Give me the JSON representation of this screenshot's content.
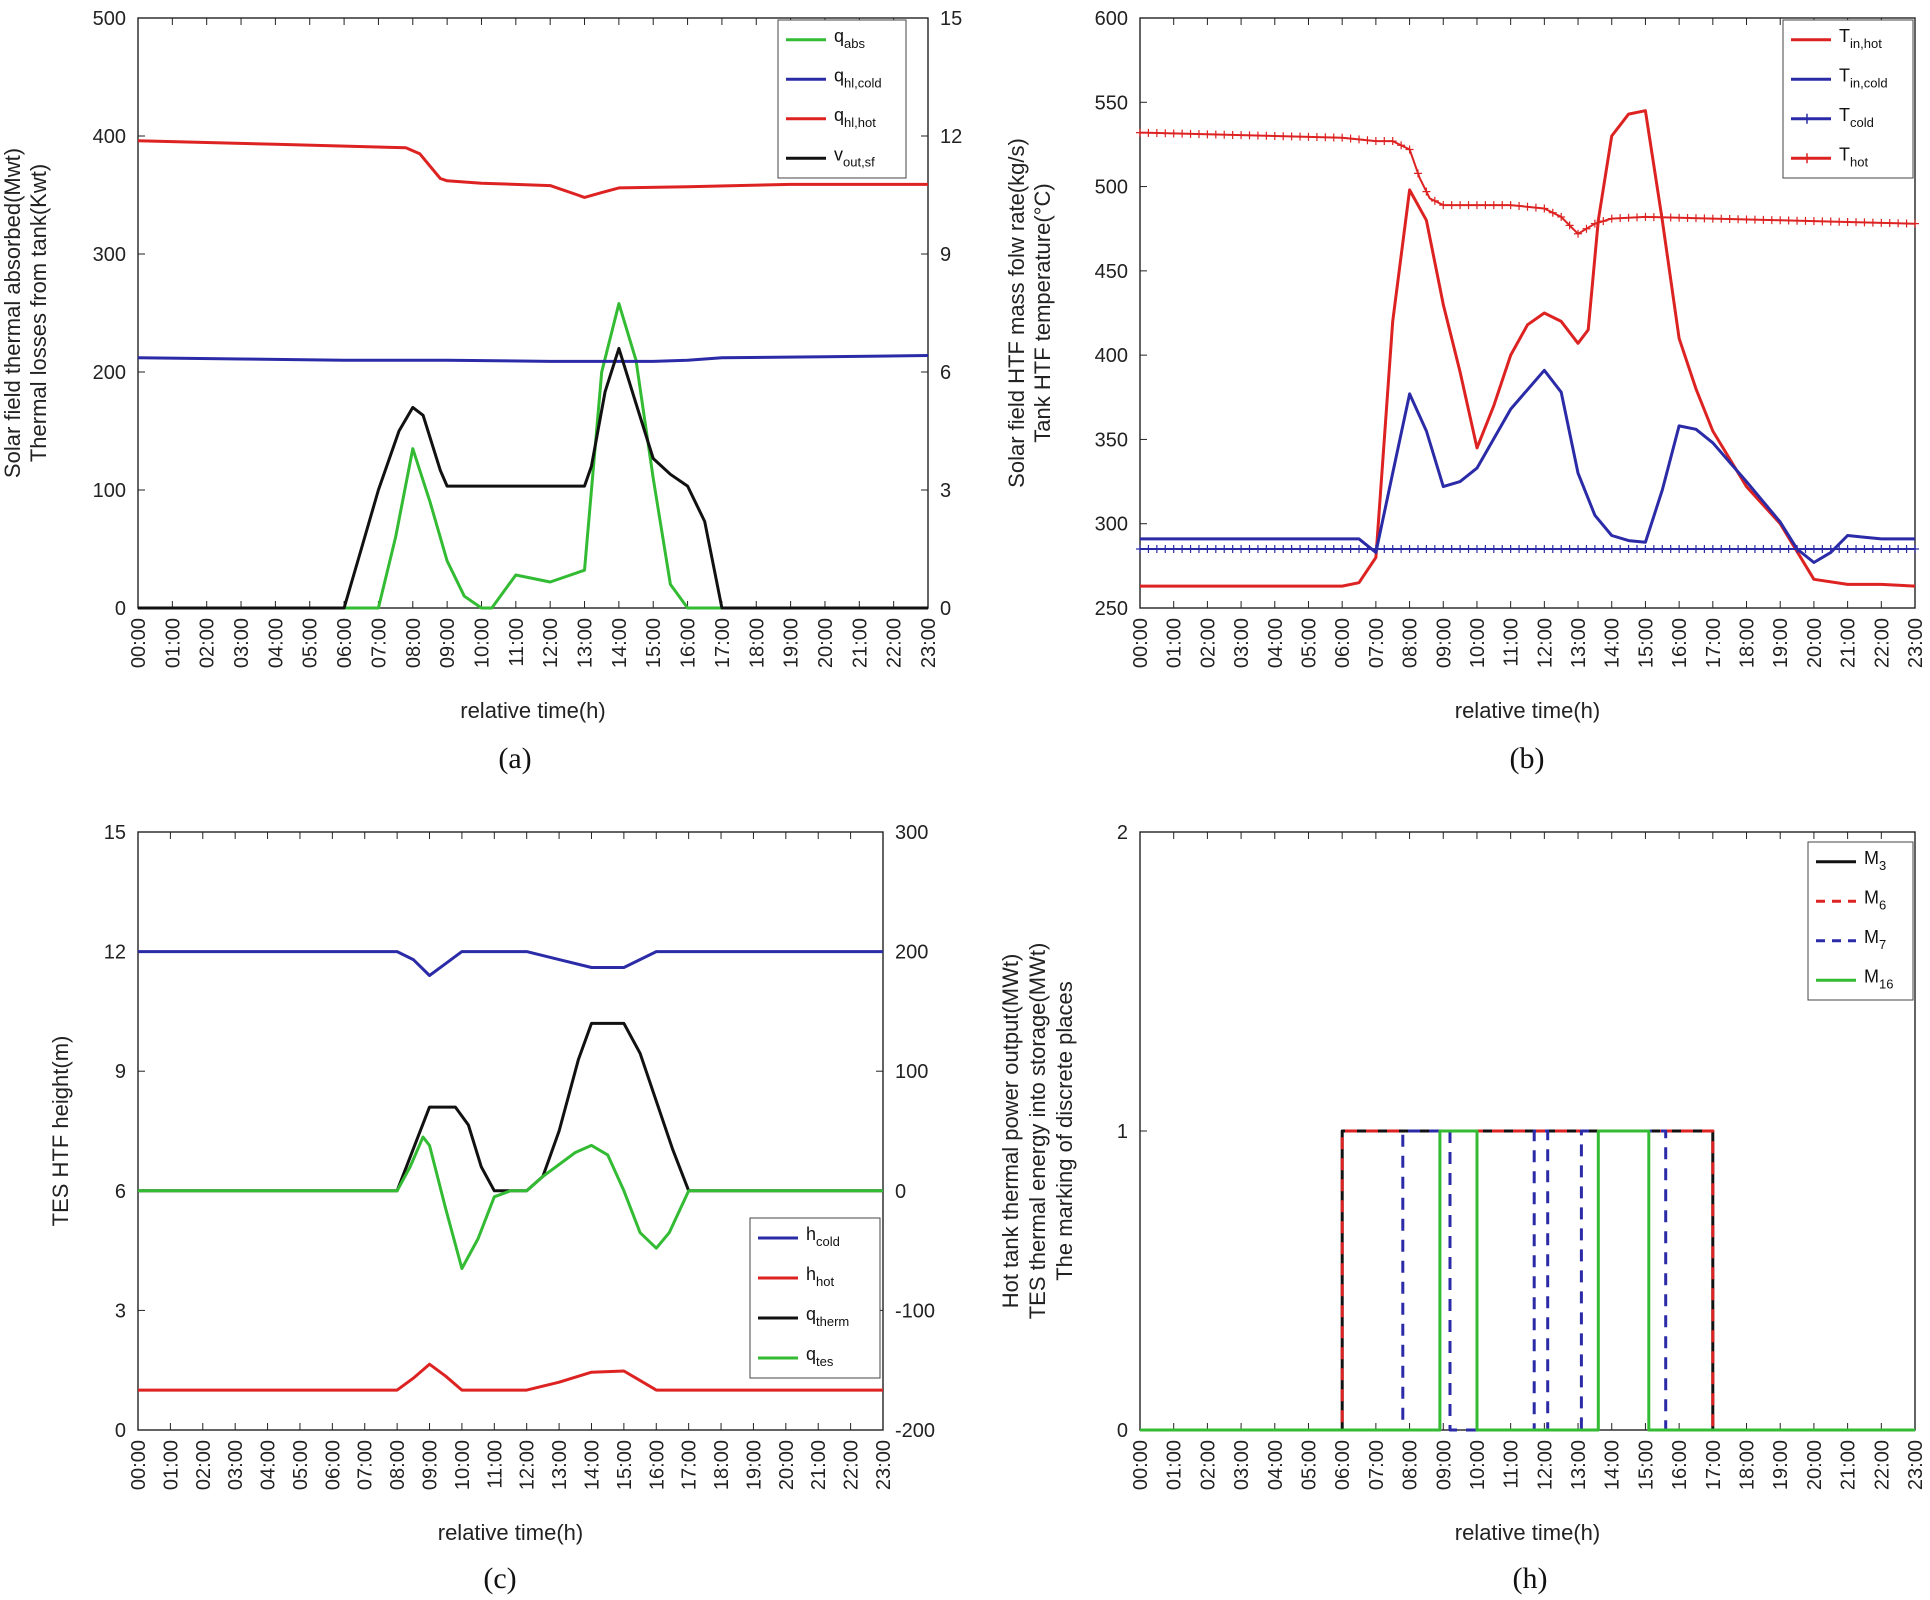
{
  "chart_data": [
    {
      "id": "a",
      "type": "line",
      "caption": "(a)",
      "xlabel": "relative time(h)",
      "ylabel_left": [
        "Solar field thermal absorbed(Mwt)",
        "Thermal losses from tank(Kwt)"
      ],
      "ylim_left": [
        0,
        500
      ],
      "yticks_left": [
        "0",
        "100",
        "200",
        "300",
        "400",
        "500"
      ],
      "ylim_right": [
        0,
        15
      ],
      "yticks_right": [
        "0",
        "3",
        "6",
        "9",
        "12",
        "15"
      ],
      "legend_position": "top-right",
      "series": [
        {
          "name": "q",
          "sub": "abs",
          "color": "#33bb33",
          "axis": "left",
          "style": "solid",
          "x": [
            0,
            6,
            6.2,
            7,
            7.5,
            8,
            8.5,
            9,
            9.5,
            10,
            10.3,
            11,
            12,
            13,
            13.5,
            14,
            14.5,
            15,
            15.5,
            16,
            23
          ],
          "y": [
            0,
            0,
            0,
            0,
            60,
            135,
            90,
            40,
            10,
            0,
            0,
            28,
            22,
            32,
            200,
            258,
            210,
            110,
            20,
            0,
            0
          ]
        },
        {
          "name": "q",
          "sub": "hl,cold",
          "color": "#2b2ba8",
          "axis": "left",
          "style": "solid",
          "x": [
            0,
            3,
            6,
            9,
            12,
            13,
            15,
            16,
            17,
            20,
            23
          ],
          "y": [
            212,
            211,
            210,
            210,
            209,
            209,
            209,
            210,
            212,
            213,
            214
          ]
        },
        {
          "name": "q",
          "sub": "hl,hot",
          "color": "#dd2222",
          "axis": "left",
          "style": "solid",
          "x": [
            0,
            4,
            7.8,
            8.2,
            8.8,
            9,
            10,
            12,
            12.8,
            13,
            13.5,
            14,
            16,
            19,
            23
          ],
          "y": [
            396,
            393,
            390,
            385,
            364,
            362,
            360,
            358,
            350,
            348,
            352,
            356,
            357,
            359,
            359
          ]
        },
        {
          "name": "v",
          "sub": "out,sf",
          "color": "#111111",
          "axis": "right",
          "style": "solid",
          "x": [
            0,
            6,
            6.5,
            7,
            7.6,
            8,
            8.3,
            8.8,
            9,
            10,
            11,
            12,
            13,
            13.2,
            13.6,
            14,
            14.5,
            15,
            15.5,
            16,
            16.5,
            17,
            23
          ],
          "y": [
            0,
            0,
            1.5,
            3,
            4.5,
            5.1,
            4.9,
            3.5,
            3.1,
            3.1,
            3.1,
            3.1,
            3.1,
            3.6,
            5.5,
            6.6,
            5.2,
            3.8,
            3.4,
            3.1,
            2.2,
            0,
            0
          ]
        }
      ]
    },
    {
      "id": "b",
      "type": "line",
      "caption": "(b)",
      "xlabel": "relative time(h)",
      "ylabel_left": [
        "Solar field HTF mass folw rate(kg/s)",
        "Tank HTF temperature(°C)"
      ],
      "ylim_left": [
        250,
        600
      ],
      "yticks_left": [
        "250",
        "300",
        "350",
        "400",
        "450",
        "500",
        "550",
        "600"
      ],
      "legend_position": "top-right",
      "series": [
        {
          "name": "T",
          "sub": "in,hot",
          "color": "#dd2222",
          "axis": "left",
          "style": "solid",
          "x": [
            0,
            6,
            6.5,
            7,
            7.5,
            8,
            8.5,
            9,
            9.5,
            10,
            10.5,
            11,
            11.5,
            12,
            12.5,
            13,
            13.3,
            13.6,
            14,
            14.5,
            15,
            15.5,
            16,
            16.5,
            17,
            18,
            19,
            20,
            21,
            22,
            23
          ],
          "y": [
            263,
            263,
            265,
            280,
            420,
            498,
            480,
            430,
            390,
            345,
            370,
            400,
            418,
            425,
            420,
            407,
            415,
            480,
            530,
            543,
            545,
            480,
            410,
            380,
            355,
            322,
            300,
            267,
            264,
            264,
            263
          ]
        },
        {
          "name": "T",
          "sub": "in,cold",
          "color": "#2b2ba8",
          "axis": "left",
          "style": "solid",
          "x": [
            0,
            6,
            6.5,
            7,
            7.5,
            8,
            8.5,
            9,
            9.5,
            10,
            11,
            12,
            12.5,
            13,
            13.5,
            14,
            14.5,
            15,
            15.5,
            16,
            16.5,
            17,
            18,
            19,
            19.5,
            20,
            20.5,
            21,
            21.5,
            22,
            23
          ],
          "y": [
            291,
            291,
            291,
            283,
            330,
            377,
            355,
            322,
            325,
            333,
            368,
            391,
            378,
            330,
            305,
            293,
            290,
            289,
            320,
            358,
            356,
            348,
            325,
            301,
            285,
            277,
            283,
            293,
            292,
            291,
            291
          ]
        },
        {
          "name": "T",
          "sub": "cold",
          "color": "#2b2ba8",
          "axis": "left",
          "style": "marker",
          "x": [
            0,
            5,
            10,
            15,
            20,
            23
          ],
          "y": [
            285,
            285,
            285,
            285,
            285,
            285
          ]
        },
        {
          "name": "T",
          "sub": "hot",
          "color": "#dd2222",
          "axis": "left",
          "style": "marker",
          "x": [
            0,
            2,
            4,
            6,
            7,
            7.5,
            8,
            8.3,
            8.6,
            9,
            10,
            11,
            12,
            12.5,
            13,
            13.5,
            14,
            15,
            17,
            19,
            21,
            23
          ],
          "y": [
            532,
            531,
            530,
            529,
            527,
            527,
            522,
            505,
            493,
            489,
            489,
            489,
            487,
            482,
            472,
            478,
            481,
            482,
            481,
            480,
            479,
            478
          ]
        }
      ]
    },
    {
      "id": "c",
      "type": "line",
      "caption": "(c)",
      "xlabel": "relative time(h)",
      "ylabel_left": [
        "TES HTF height(m)"
      ],
      "ylim_left": [
        0,
        15
      ],
      "yticks_left": [
        "0",
        "3",
        "6",
        "9",
        "12",
        "15"
      ],
      "ylim_right": [
        -200,
        300
      ],
      "yticks_right": [
        "-200",
        "-100",
        "0",
        "100",
        "200",
        "300"
      ],
      "legend_position": "bottom-right",
      "series": [
        {
          "name": "h",
          "sub": "cold",
          "color": "#2b2ba8",
          "axis": "left",
          "style": "solid",
          "x": [
            0,
            7,
            8,
            8.5,
            9,
            9.5,
            10,
            12,
            13,
            14,
            15,
            16,
            23
          ],
          "y": [
            12,
            12,
            12,
            11.8,
            11.4,
            11.7,
            12,
            12,
            11.8,
            11.6,
            11.6,
            12,
            12
          ]
        },
        {
          "name": "h",
          "sub": "hot",
          "color": "#dd2222",
          "axis": "left",
          "style": "solid",
          "x": [
            0,
            7,
            8,
            8.5,
            9,
            9.5,
            10,
            12,
            13,
            14,
            15,
            16,
            23
          ],
          "y": [
            1,
            1,
            1,
            1.3,
            1.65,
            1.35,
            1,
            1,
            1.2,
            1.45,
            1.48,
            1,
            1
          ]
        },
        {
          "name": "q",
          "sub": "therm",
          "color": "#111111",
          "axis": "right",
          "style": "solid",
          "x": [
            0,
            8,
            8.5,
            9,
            9.8,
            10.2,
            10.6,
            11,
            12,
            12.5,
            13,
            13.6,
            14,
            14.5,
            15,
            15.5,
            16,
            16.5,
            17,
            23
          ],
          "y": [
            0,
            0,
            35,
            70,
            70,
            55,
            20,
            0,
            0,
            12,
            50,
            110,
            140,
            140,
            140,
            115,
            75,
            35,
            0,
            0
          ]
        },
        {
          "name": "q",
          "sub": "tes",
          "color": "#33bb33",
          "axis": "right",
          "style": "solid",
          "x": [
            0,
            7,
            8,
            8.4,
            8.8,
            9,
            9.5,
            10,
            10.5,
            11,
            11.5,
            12,
            12.5,
            13,
            13.5,
            14,
            14.5,
            15,
            15.5,
            16,
            16.4,
            17,
            23
          ],
          "y": [
            0,
            0,
            0,
            20,
            45,
            38,
            -15,
            -65,
            -40,
            -5,
            0,
            0,
            12,
            22,
            32,
            38,
            30,
            0,
            -35,
            -48,
            -35,
            0,
            0
          ]
        }
      ]
    },
    {
      "id": "h",
      "type": "line",
      "caption": "(h)",
      "xlabel": "relative time(h)",
      "ylabel_left": [
        "Hot tank thermal power output(MWt)",
        "TES thermal energy into storage(MWt)",
        "The marking of discrete places"
      ],
      "ylim_left": [
        0,
        2
      ],
      "yticks_left": [
        "0",
        "1",
        "2"
      ],
      "legend_position": "top-right",
      "series": [
        {
          "name": "M",
          "sub": "3",
          "color": "#111111",
          "axis": "left",
          "style": "solid",
          "x": [
            0,
            6,
            6,
            17,
            17,
            23
          ],
          "y": [
            0,
            0,
            1,
            1,
            0,
            0
          ]
        },
        {
          "name": "M",
          "sub": "6",
          "color": "#dd2222",
          "axis": "left",
          "style": "dashed",
          "x": [
            0,
            6,
            6,
            17,
            17,
            23
          ],
          "y": [
            0,
            0,
            1,
            1,
            0,
            0
          ]
        },
        {
          "name": "M",
          "sub": "7",
          "color": "#2b2ba8",
          "axis": "left",
          "style": "dashed",
          "x": [
            0,
            7.8,
            7.8,
            9.2,
            9.2,
            11.7,
            11.7,
            12.1,
            12.1,
            13.1,
            13.1,
            15.6,
            15.6,
            23
          ],
          "y": [
            0,
            0,
            1,
            1,
            0,
            0,
            1,
            1,
            0,
            0,
            1,
            1,
            0,
            0
          ]
        },
        {
          "name": "M",
          "sub": "16",
          "color": "#33bb33",
          "axis": "left",
          "style": "solid",
          "x": [
            0,
            8.9,
            8.9,
            10,
            10,
            13.6,
            13.6,
            15.1,
            15.1,
            23
          ],
          "y": [
            0,
            0,
            1,
            1,
            0,
            0,
            1,
            1,
            0,
            0
          ]
        }
      ]
    }
  ],
  "time_ticks": [
    "00:00",
    "01:00",
    "02:00",
    "03:00",
    "04:00",
    "05:00",
    "06:00",
    "07:00",
    "08:00",
    "09:00",
    "10:00",
    "11:00",
    "12:00",
    "13:00",
    "14:00",
    "15:00",
    "16:00",
    "17:00",
    "18:00",
    "19:00",
    "20:00",
    "21:00",
    "22:00",
    "23:00"
  ]
}
